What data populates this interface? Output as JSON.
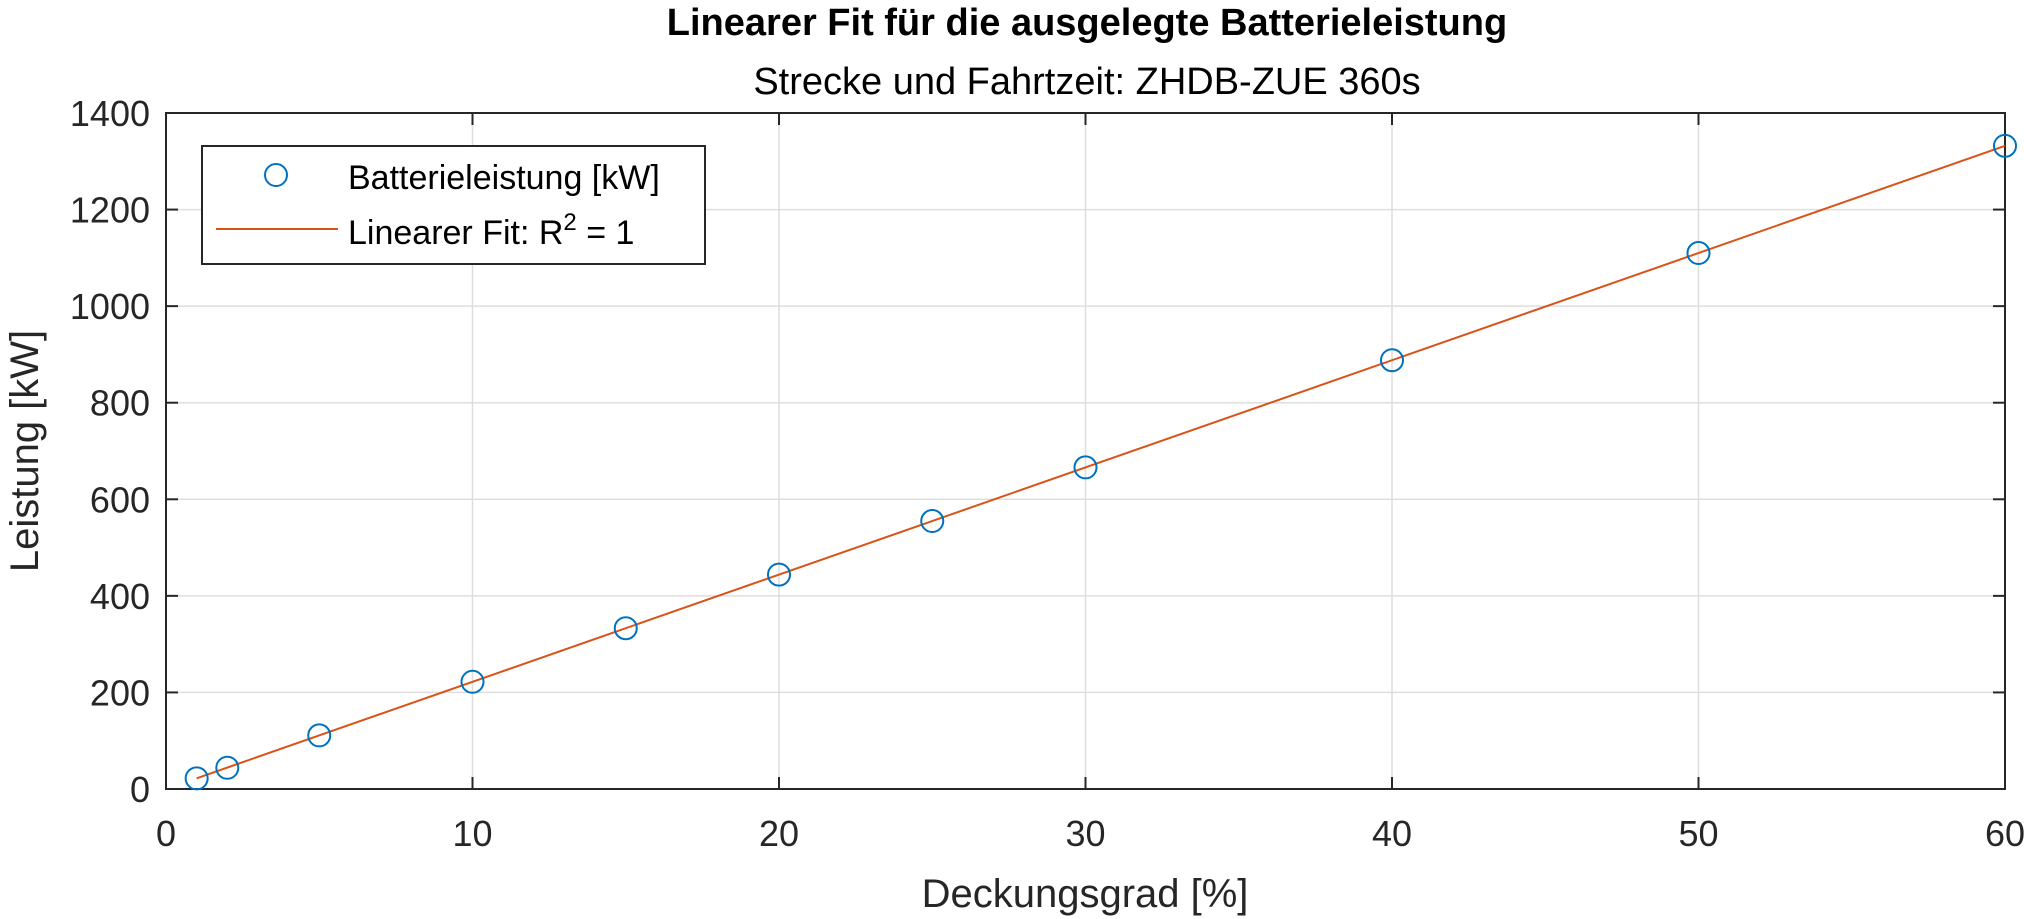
{
  "chart_data": {
    "type": "scatter",
    "title": "Linearer Fit für die ausgelegte Batterieleistung",
    "subtitle": "Strecke und Fahrtzeit: ZHDB-ZUE 360s",
    "xlabel": "Deckungsgrad [%]",
    "ylabel": "Leistung [kW]",
    "xlim": [
      0,
      60
    ],
    "ylim": [
      0,
      1400
    ],
    "xticks": [
      0,
      10,
      20,
      30,
      40,
      50,
      60
    ],
    "yticks": [
      0,
      200,
      400,
      600,
      800,
      1000,
      1200,
      1400
    ],
    "grid": true,
    "legend_position": "top-left",
    "series": [
      {
        "name": "Batterieleistung [kW]",
        "kind": "markers",
        "marker": "circle",
        "color": "#0072BD",
        "x": [
          1,
          2,
          5,
          10,
          15,
          20,
          25,
          30,
          40,
          50,
          60
        ],
        "y": [
          22,
          44,
          111,
          222,
          333,
          444,
          555,
          666,
          888,
          1110,
          1332
        ]
      },
      {
        "name_main": "Linearer Fit: R",
        "name_sup": "2",
        "name_tail": " = 1",
        "kind": "line",
        "color": "#D95319",
        "x": [
          1,
          60
        ],
        "y": [
          22.2,
          1332
        ]
      }
    ]
  }
}
